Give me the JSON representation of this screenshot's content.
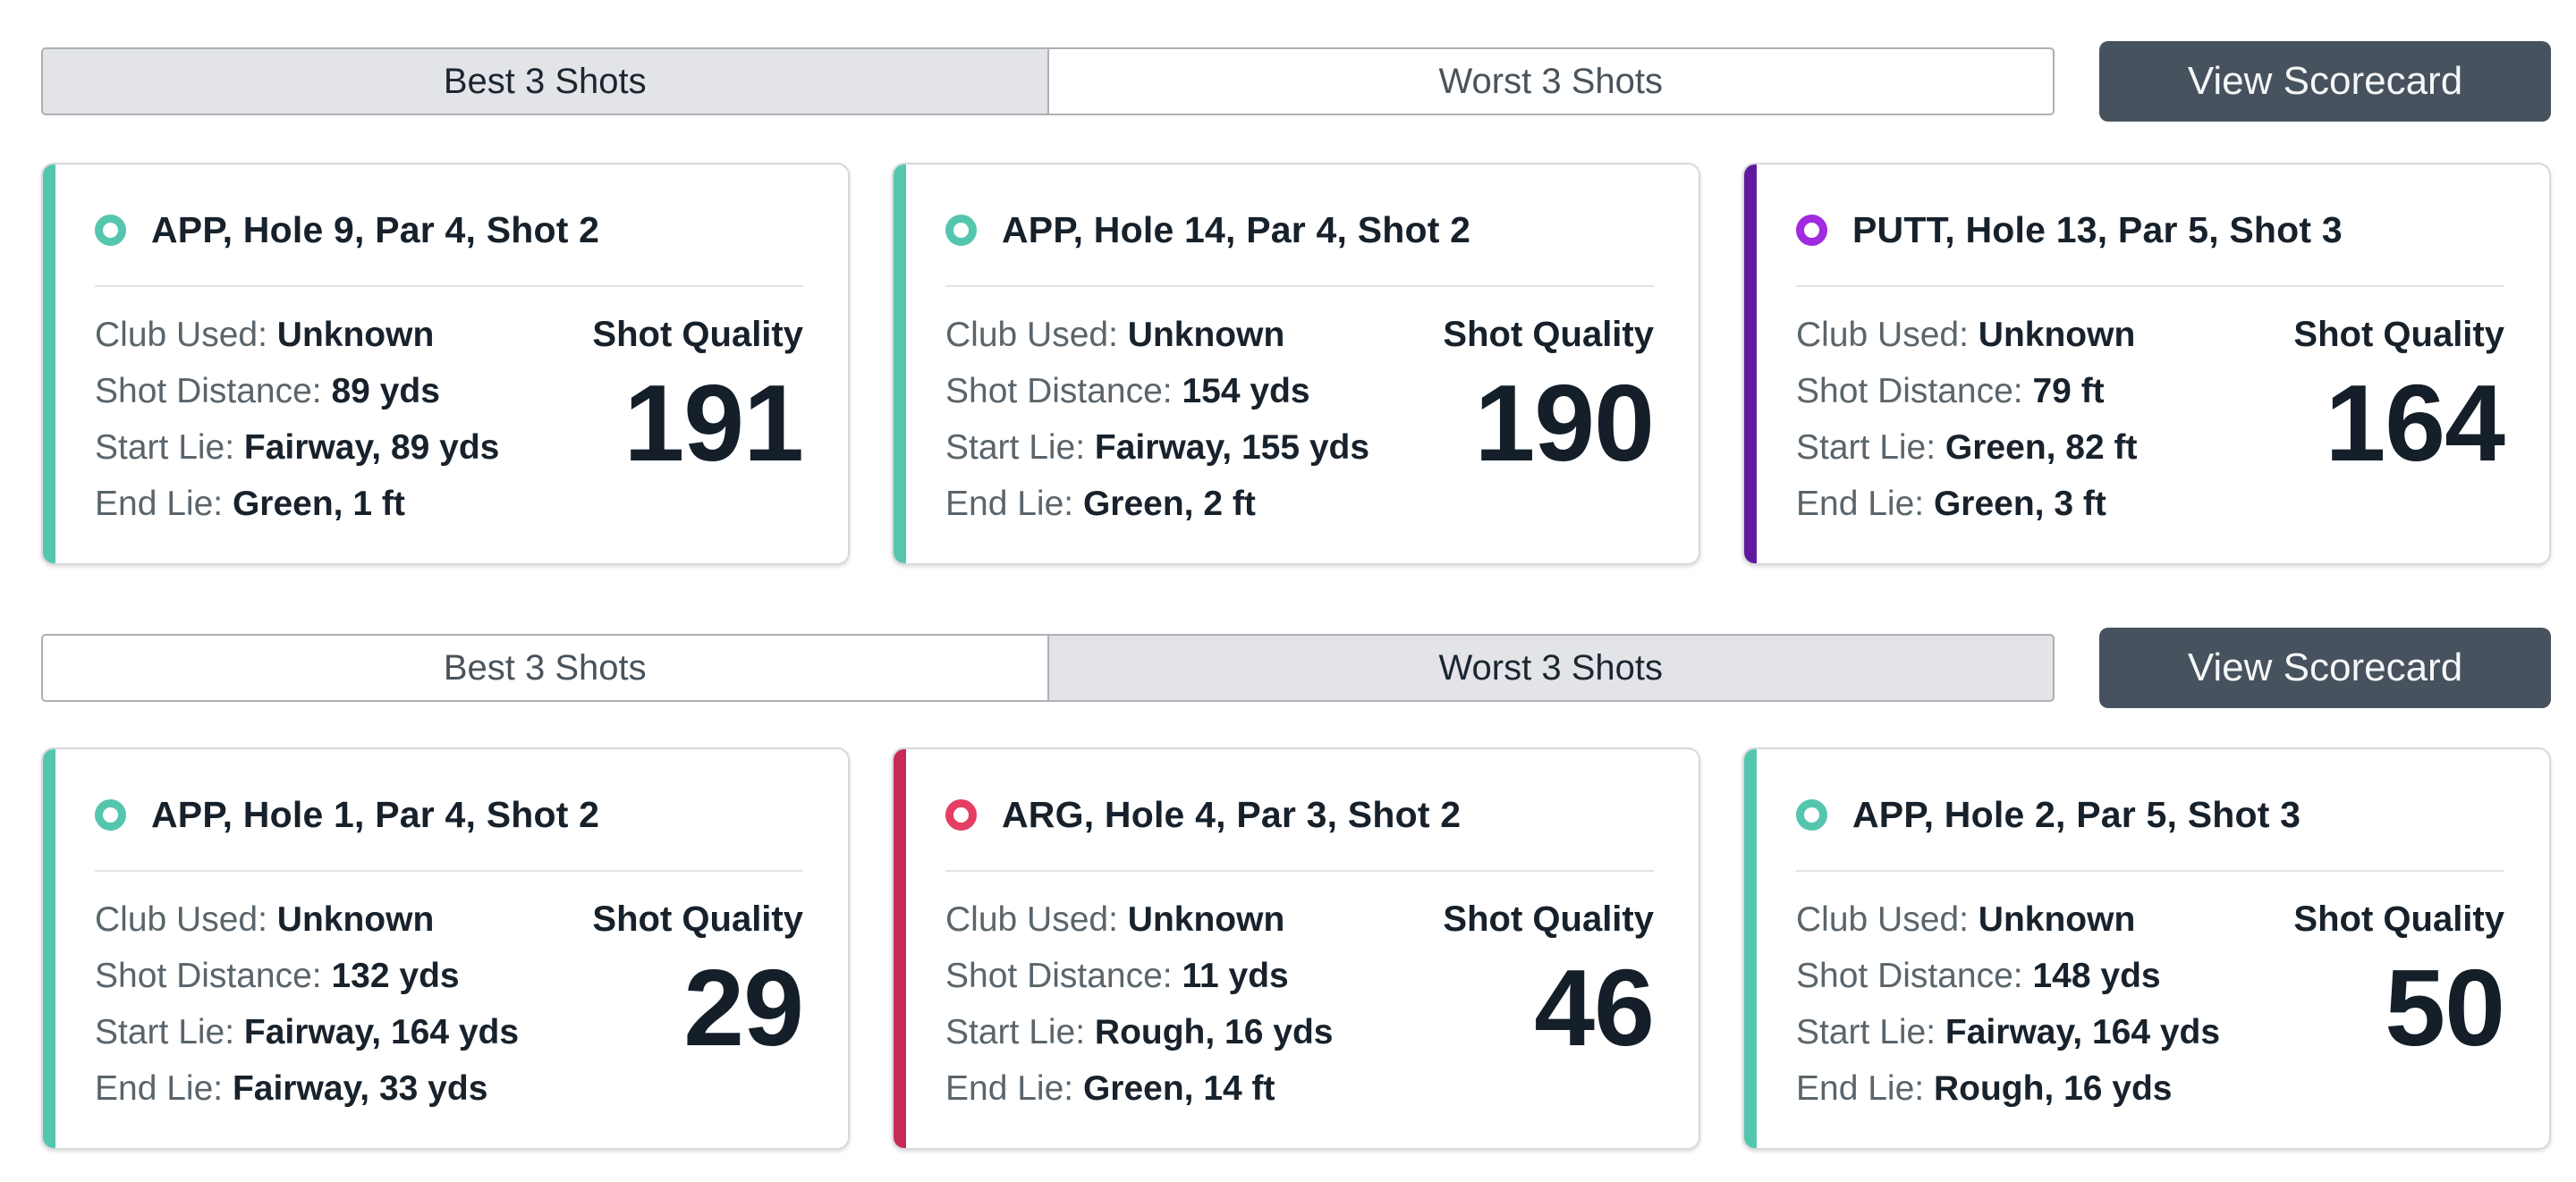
{
  "colors": {
    "teal": "#55C6AE",
    "purple_bar": "#60199E",
    "purple_ring": "#A12BE0",
    "crimson_bar": "#C62B55",
    "crimson_ring": "#E43F63",
    "selected_toggle_bg": "#E2E4E7",
    "scorecard_button_bg": "#46525D"
  },
  "sections": [
    {
      "toggle": {
        "best": "Best 3 Shots",
        "worst": "Worst 3 Shots",
        "selected": "best"
      },
      "scorecard_button": "View Scorecard",
      "cards": [
        {
          "title": "APP, Hole 9, Par 4, Shot 2",
          "bar_color": "#55C6AE",
          "ring_color": "#55C6AE",
          "stats": [
            {
              "label": "Club Used:",
              "value": "Unknown"
            },
            {
              "label": "Shot Distance:",
              "value": "89 yds"
            },
            {
              "label": "Start Lie:",
              "value": "Fairway, 89 yds"
            },
            {
              "label": "End Lie:",
              "value": "Green, 1 ft"
            }
          ],
          "quality_label": "Shot Quality",
          "quality_value": "191"
        },
        {
          "title": "APP, Hole 14, Par 4, Shot 2",
          "bar_color": "#55C6AE",
          "ring_color": "#55C6AE",
          "stats": [
            {
              "label": "Club Used:",
              "value": "Unknown"
            },
            {
              "label": "Shot Distance:",
              "value": "154 yds"
            },
            {
              "label": "Start Lie:",
              "value": "Fairway, 155 yds"
            },
            {
              "label": "End Lie:",
              "value": "Green, 2 ft"
            }
          ],
          "quality_label": "Shot Quality",
          "quality_value": "190"
        },
        {
          "title": "PUTT, Hole 13, Par 5, Shot 3",
          "bar_color": "#60199E",
          "ring_color": "#A12BE0",
          "stats": [
            {
              "label": "Club Used:",
              "value": "Unknown"
            },
            {
              "label": "Shot Distance:",
              "value": "79 ft"
            },
            {
              "label": "Start Lie:",
              "value": "Green, 82 ft"
            },
            {
              "label": "End Lie:",
              "value": "Green, 3 ft"
            }
          ],
          "quality_label": "Shot Quality",
          "quality_value": "164"
        }
      ]
    },
    {
      "toggle": {
        "best": "Best 3 Shots",
        "worst": "Worst 3 Shots",
        "selected": "worst"
      },
      "scorecard_button": "View Scorecard",
      "cards": [
        {
          "title": "APP, Hole 1, Par 4, Shot 2",
          "bar_color": "#55C6AE",
          "ring_color": "#55C6AE",
          "stats": [
            {
              "label": "Club Used:",
              "value": "Unknown"
            },
            {
              "label": "Shot Distance:",
              "value": "132 yds"
            },
            {
              "label": "Start Lie:",
              "value": "Fairway, 164 yds"
            },
            {
              "label": "End Lie:",
              "value": "Fairway, 33 yds"
            }
          ],
          "quality_label": "Shot Quality",
          "quality_value": "29"
        },
        {
          "title": "ARG, Hole 4, Par 3, Shot 2",
          "bar_color": "#C62B55",
          "ring_color": "#E43F63",
          "stats": [
            {
              "label": "Club Used:",
              "value": "Unknown"
            },
            {
              "label": "Shot Distance:",
              "value": "11 yds"
            },
            {
              "label": "Start Lie:",
              "value": "Rough, 16 yds"
            },
            {
              "label": "End Lie:",
              "value": "Green, 14 ft"
            }
          ],
          "quality_label": "Shot Quality",
          "quality_value": "46"
        },
        {
          "title": "APP, Hole 2, Par 5, Shot 3",
          "bar_color": "#55C6AE",
          "ring_color": "#55C6AE",
          "stats": [
            {
              "label": "Club Used:",
              "value": "Unknown"
            },
            {
              "label": "Shot Distance:",
              "value": "148 yds"
            },
            {
              "label": "Start Lie:",
              "value": "Fairway, 164 yds"
            },
            {
              "label": "End Lie:",
              "value": "Rough, 16 yds"
            }
          ],
          "quality_label": "Shot Quality",
          "quality_value": "50"
        }
      ]
    }
  ]
}
